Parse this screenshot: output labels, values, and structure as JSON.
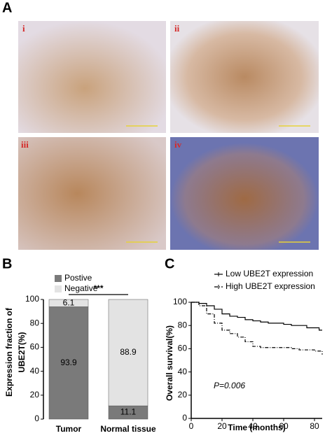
{
  "panels": {
    "labels": [
      "A",
      "B",
      "C"
    ],
    "images": [
      "i",
      "ii",
      "iii",
      "iv"
    ]
  },
  "chart_data": [
    {
      "type": "stacked-bar",
      "ylabel": [
        "Expression fraction of",
        "UBE2T(%)"
      ],
      "categories": [
        "Tumor",
        "Normal tissue"
      ],
      "series": [
        {
          "name": "Postive",
          "color": "#7a7a7a",
          "values": [
            93.9,
            11.1
          ]
        },
        {
          "name": "Negative",
          "color": "#e3e3e3",
          "values": [
            6.1,
            88.9
          ]
        }
      ],
      "annotation": "***",
      "ylim": [
        0,
        100
      ],
      "yticks": [
        0,
        20,
        40,
        60,
        80,
        100
      ]
    },
    {
      "type": "line",
      "step": true,
      "xlabel": "Time (months)",
      "ylabel": "Overall survival(%)",
      "annotation": "P=0.006",
      "x": [
        0,
        5,
        10,
        15,
        20,
        25,
        30,
        35,
        40,
        45,
        50,
        55,
        60,
        65,
        70,
        75,
        80,
        83,
        85
      ],
      "series": [
        {
          "name": "Low UBE2T expression",
          "color": "#000000",
          "line_style": "solid",
          "values": [
            100,
            99,
            97,
            94,
            90,
            88,
            87,
            85,
            84,
            83,
            82,
            82,
            81,
            80,
            80,
            78,
            78,
            76,
            76
          ]
        },
        {
          "name": "High UBE2T expression",
          "color": "#000000",
          "line_style": "dashdot",
          "values": [
            100,
            97,
            90,
            82,
            76,
            73,
            70,
            66,
            62,
            61,
            61,
            61,
            61,
            60,
            59,
            59,
            58,
            58,
            55
          ]
        }
      ],
      "xlim": [
        0,
        85
      ],
      "xticks": [
        0,
        20,
        40,
        60,
        80
      ],
      "ylim": [
        0,
        100
      ],
      "yticks": [
        0,
        20,
        40,
        60,
        80,
        100
      ]
    }
  ]
}
